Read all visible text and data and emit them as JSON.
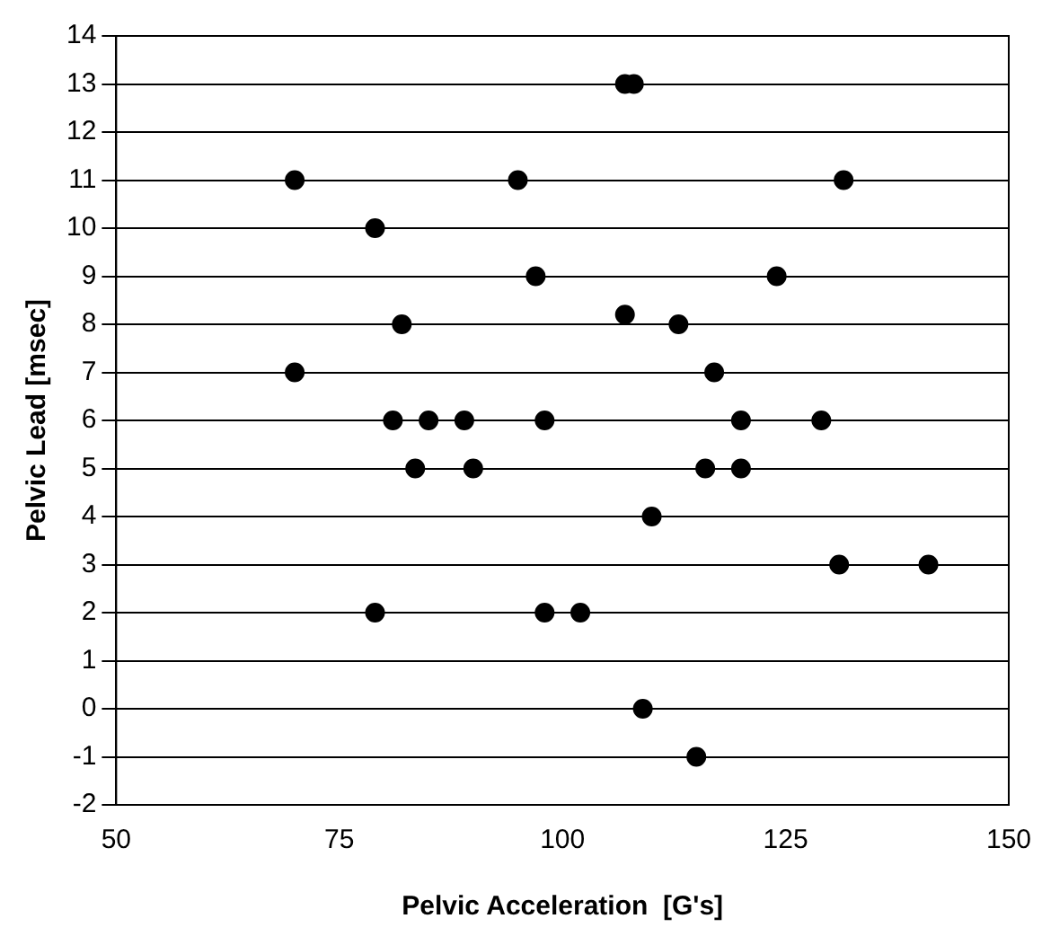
{
  "chart_data": {
    "type": "scatter",
    "xlabel": "Pelvic Acceleration  [G's]",
    "ylabel": "Pelvic Lead [msec]",
    "x": [
      107,
      108,
      70,
      95,
      131.5,
      79,
      97,
      124,
      82,
      107,
      113,
      70,
      117,
      81,
      85,
      89,
      98,
      120,
      129,
      83.5,
      90,
      116,
      120,
      110,
      131,
      141,
      79,
      98,
      102,
      109,
      115
    ],
    "values": [
      13,
      13,
      11,
      11,
      11,
      10,
      9,
      9,
      8,
      8.2,
      8,
      7,
      7,
      6,
      6,
      6,
      6,
      6,
      6,
      5,
      5,
      5,
      5,
      4,
      3,
      3,
      2,
      2,
      2,
      0,
      -1
    ],
    "color": "#000000",
    "marker": "circle",
    "xlim": [
      50,
      150
    ],
    "xticks": [
      50,
      75,
      100,
      125,
      150
    ],
    "ylim": [
      -2,
      14
    ],
    "yticks": [
      -2,
      -1,
      0,
      1,
      2,
      3,
      4,
      5,
      6,
      7,
      8,
      9,
      10,
      11,
      12,
      13,
      14
    ],
    "grid": "y",
    "legend": false
  }
}
